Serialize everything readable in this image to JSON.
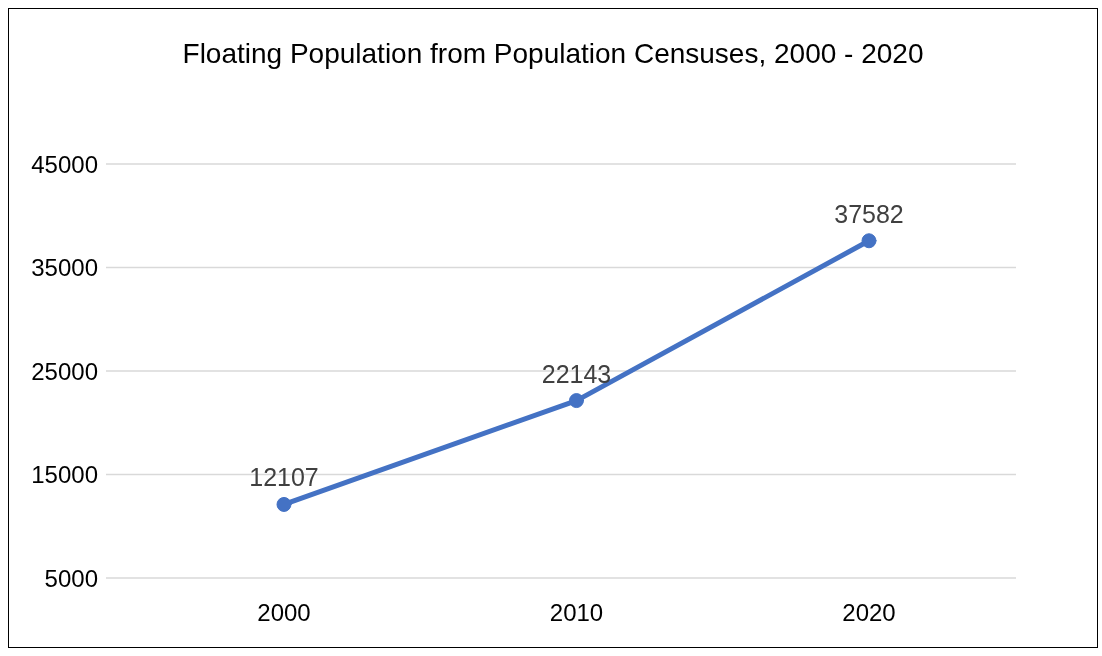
{
  "chart_data": {
    "type": "line",
    "title": "Floating Population from Population Censuses, 2000 - 2020",
    "categories": [
      "2000",
      "2010",
      "2020"
    ],
    "series": [
      {
        "color": "#4472c4",
        "values": [
          12107,
          22143,
          37582
        ]
      }
    ],
    "ylim": [
      5000,
      45000
    ],
    "yticks": [
      5000,
      15000,
      25000,
      35000,
      45000
    ],
    "grid": "y",
    "marker": "circle",
    "line_style": "solid",
    "data_labels": true
  }
}
